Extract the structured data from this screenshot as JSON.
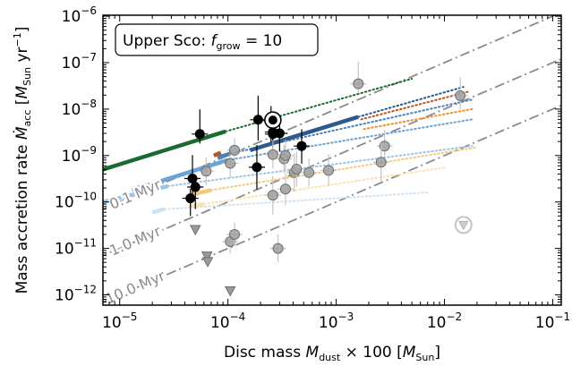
{
  "chart_data": {
    "type": "scatter",
    "title": "",
    "annotation": {
      "prefix": "Upper Sco: ",
      "var": "f",
      "var_sub": "grow",
      "suffix": " = 10"
    },
    "xlabel": {
      "prefix": "Disc mass ",
      "var": "M",
      "var_sub": "dust",
      "mid": " × 100 [",
      "unit": "M",
      "unit_sub": "Sun",
      "end": "]"
    },
    "ylabel": {
      "prefix": "Mass accretion rate ",
      "var": "Ṁ",
      "var_sub": "acc",
      "mid": " [",
      "unit": "M",
      "unit_sub": "Sun",
      "unit_rest": " yr",
      "unit_sup": "−1",
      "end": "]"
    },
    "xscale": "log",
    "yscale": "log",
    "xlim": [
      7e-06,
      0.12
    ],
    "ylim": [
      6e-13,
      1.05e-06
    ],
    "xticks": [
      {
        "value": 1e-05,
        "base": "10",
        "exp": "−5"
      },
      {
        "value": 0.0001,
        "base": "10",
        "exp": "−4"
      },
      {
        "value": 0.001,
        "base": "10",
        "exp": "−3"
      },
      {
        "value": 0.01,
        "base": "10",
        "exp": "−2"
      },
      {
        "value": 0.1,
        "base": "10",
        "exp": "−1"
      }
    ],
    "yticks": [
      {
        "value": 1e-12,
        "base": "10",
        "exp": "−12"
      },
      {
        "value": 1e-11,
        "base": "10",
        "exp": "−11"
      },
      {
        "value": 1e-10,
        "base": "10",
        "exp": "−10"
      },
      {
        "value": 1e-09,
        "base": "10",
        "exp": "−9"
      },
      {
        "value": 1e-08,
        "base": "10",
        "exp": "−8"
      },
      {
        "value": 1e-07,
        "base": "10",
        "exp": "−7"
      },
      {
        "value": 1e-06,
        "base": "10",
        "exp": "−6"
      }
    ],
    "isochrones": [
      {
        "label": "0.1 Myr",
        "x": [
          3e-06,
          0.15
        ],
        "y": [
          3e-11,
          1.5e-06
        ]
      },
      {
        "label": "1.0 Myr",
        "x": [
          3e-06,
          0.15
        ],
        "y": [
          3e-12,
          1.5e-07
        ]
      },
      {
        "label": "10.0 Myr",
        "x": [
          3e-06,
          0.15
        ],
        "y": [
          3e-13,
          1.5e-08
        ]
      }
    ],
    "tracks": [
      {
        "color": "#1b6a30",
        "solid_x": [
          7e-06,
          9.5e-05
        ],
        "solid_y": [
          5e-10,
          3.3e-09
        ],
        "dot_x": [
          9.5e-05,
          0.005
        ],
        "dot_y": [
          3.3e-09,
          4.5e-08
        ]
      },
      {
        "color": "#2c5a8e",
        "solid_x": [
          0.00016,
          0.0016
        ],
        "solid_y": [
          1.3e-09,
          6.8e-09
        ],
        "dot_x": [
          0.0016,
          0.015
        ],
        "dot_y": [
          6.8e-09,
          3e-08
        ]
      },
      {
        "color": "#c0561b",
        "solid_x": [
          7.4e-05,
          8.6e-05
        ],
        "solid_y": [
          1e-09,
          1.15e-09
        ],
        "dot_x": [
          0.0017,
          0.017
        ],
        "dot_y": [
          6e-09,
          2.4e-08
        ]
      },
      {
        "color": "#4f81b8",
        "solid_x": [
          8e-05,
          0.000105
        ],
        "solid_y": [
          9e-10,
          1.1e-09
        ],
        "dot_x": [
          0.000105,
          0.018
        ],
        "dot_y": [
          1.1e-09,
          1.6e-08
        ]
      },
      {
        "color": "#f28e2b",
        "solid_x": [
          1.35e-05,
          1.7e-05
        ],
        "solid_y": [
          1.9e-10,
          2.3e-10
        ],
        "dot_x": [
          0.0018,
          0.018
        ],
        "dot_y": [
          3.7e-09,
          1e-08
        ]
      },
      {
        "color": "#6aa3d6",
        "solid_x": [
          1.3e-05,
          0.0001
        ],
        "solid_y": [
          1.8e-10,
          8e-10
        ],
        "dot_x": [
          0.0001,
          0.018
        ],
        "dot_y": [
          8e-10,
          6e-09
        ]
      },
      {
        "color": "#9dc3e6",
        "solid_x": [
          7e-06,
          2.8e-05
        ],
        "solid_y": [
          1e-10,
          2.2e-10
        ],
        "dot_x": [
          2.8e-05,
          0.018
        ],
        "dot_y": [
          2.2e-10,
          1.6e-09
        ]
      },
      {
        "color": "#f7c87a",
        "solid_x": [
          4.4e-05,
          7e-05
        ],
        "solid_y": [
          1.4e-10,
          1.8e-10
        ],
        "dot_x": [
          7e-05,
          0.02
        ],
        "dot_y": [
          1.8e-10,
          1.5e-09
        ]
      },
      {
        "color": "#fbe3b0",
        "solid_x": [
          4.4e-05,
          6e-05
        ],
        "solid_y": [
          8e-11,
          9e-11
        ],
        "dot_x": [
          6e-05,
          0.01
        ],
        "dot_y": [
          9e-11,
          5.5e-10
        ]
      },
      {
        "color": "#cfe2f3",
        "solid_x": [
          2e-05,
          2.6e-05
        ],
        "solid_y": [
          6e-11,
          7e-11
        ],
        "dot_x": [
          2.6e-05,
          0.007
        ],
        "dot_y": [
          7e-11,
          1.6e-10
        ]
      }
    ],
    "series": [
      {
        "kind": "detections",
        "color": "#000000",
        "x": [
          5.5e-05,
          4.7e-05,
          5e-05,
          4.5e-05,
          0.00019,
          0.000185,
          0.00025,
          0.00026,
          0.00026,
          0.0003,
          0.00048
        ],
        "y": [
          2.9e-09,
          3.2e-10,
          2.1e-10,
          1.2e-10,
          5.9e-09,
          5.6e-10,
          5.8e-09,
          3.2e-09,
          2.9e-09,
          3e-09,
          1.6e-09
        ],
        "err_hi": [
          3.4,
          3.2,
          1.5,
          1.6,
          3.3,
          3.0,
          2.0,
          2.0,
          1.6,
          2.2,
          2.3
        ],
        "err_lo": [
          1.6,
          2.8,
          3.0,
          2.4,
          2.8,
          3.0,
          3.0,
          1.8,
          2.0,
          2.4,
          2.4
        ]
      },
      {
        "kind": "highlighted",
        "x": [
          0.00026
        ],
        "y": [
          5.8e-09
        ]
      },
      {
        "kind": "grey-detections",
        "color": "#8c8c8c",
        "x": [
          0.0016,
          0.014,
          0.0028,
          0.0026,
          6.3e-05,
          0.000105,
          0.000115,
          0.00026,
          0.00033,
          0.00034,
          0.00041,
          0.00043,
          0.00056,
          0.00085,
          0.00034,
          0.00026,
          0.000105,
          0.000115,
          0.00029
        ],
        "y": [
          3.5e-08,
          1.95e-08,
          1.6e-09,
          7.2e-10,
          4.6e-10,
          1.4e-11,
          2e-11,
          1.05e-09,
          8.5e-10,
          1e-09,
          4.3e-10,
          5.1e-10,
          4.3e-10,
          4.8e-10,
          1.9e-10,
          1.4e-10,
          6.8e-10,
          1.3e-09,
          1e-11
        ],
        "err_hi": [
          3.0,
          2.5,
          2.2,
          2.6,
          2.0,
          1.8,
          1.8,
          2.0,
          2.0,
          2.2,
          2.6,
          2.4,
          2.0,
          2.2,
          2.2,
          2.6,
          2.0,
          1.8,
          2.0
        ],
        "err_lo": [
          1.6,
          2.0,
          2.2,
          2.6,
          2.0,
          1.8,
          1.8,
          2.0,
          2.0,
          2.2,
          2.6,
          2.4,
          2.0,
          2.2,
          2.2,
          2.6,
          2.0,
          1.8,
          2.0
        ]
      },
      {
        "kind": "upper-limits",
        "color": "#8c8c8c",
        "x": [
          5e-05,
          6.4e-05,
          6.5e-05,
          0.000105
        ],
        "y": [
          2.6e-11,
          7e-12,
          5.3e-12,
          1.25e-12
        ]
      },
      {
        "kind": "faint-upper-limit",
        "color": "#c0c0c0",
        "x": [
          0.015
        ],
        "y": [
          3.2e-11
        ]
      }
    ],
    "grid": false,
    "legend": "none"
  }
}
